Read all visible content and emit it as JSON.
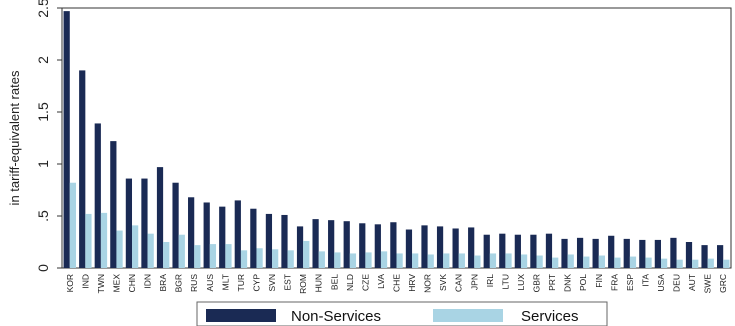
{
  "chart_data": {
    "type": "bar",
    "title": "",
    "xlabel": "",
    "ylabel": "in tariff-equivalent rates",
    "ylim": [
      0,
      2.5
    ],
    "yticks": [
      0,
      0.5,
      1,
      1.5,
      2,
      2.5
    ],
    "ytick_labels": [
      "0",
      ".5",
      "1",
      "1.5",
      "2",
      "2.5"
    ],
    "grid": false,
    "legend_position": "bottom",
    "categories": [
      "KOR",
      "IND",
      "TWN",
      "MEX",
      "CHN",
      "IDN",
      "BRA",
      "BGR",
      "RUS",
      "AUS",
      "MLT",
      "TUR",
      "CYP",
      "SVN",
      "EST",
      "ROM",
      "HUN",
      "BEL",
      "NLD",
      "CZE",
      "LVA",
      "CHE",
      "HRV",
      "NOR",
      "SVK",
      "CAN",
      "JPN",
      "IRL",
      "LTU",
      "LUX",
      "GBR",
      "PRT",
      "DNK",
      "POL",
      "FIN",
      "FRA",
      "ESP",
      "ITA",
      "USA",
      "DEU",
      "AUT",
      "SWE",
      "GRC"
    ],
    "series": [
      {
        "name": "Non-Services",
        "color": "#1a2a54",
        "values": [
          2.47,
          1.9,
          1.39,
          1.22,
          0.86,
          0.86,
          0.97,
          0.82,
          0.68,
          0.63,
          0.59,
          0.65,
          0.57,
          0.52,
          0.51,
          0.4,
          0.47,
          0.46,
          0.45,
          0.43,
          0.42,
          0.44,
          0.37,
          0.41,
          0.4,
          0.38,
          0.39,
          0.32,
          0.33,
          0.32,
          0.32,
          0.33,
          0.28,
          0.29,
          0.28,
          0.31,
          0.28,
          0.27,
          0.27,
          0.29,
          0.25,
          0.22,
          0.22
        ]
      },
      {
        "name": "Services",
        "color": "#a9d4e4",
        "values": [
          0.82,
          0.52,
          0.53,
          0.36,
          0.41,
          0.33,
          0.25,
          0.32,
          0.22,
          0.23,
          0.23,
          0.17,
          0.19,
          0.18,
          0.17,
          0.26,
          0.16,
          0.15,
          0.14,
          0.15,
          0.16,
          0.14,
          0.14,
          0.13,
          0.14,
          0.14,
          0.12,
          0.14,
          0.14,
          0.13,
          0.12,
          0.1,
          0.13,
          0.11,
          0.12,
          0.1,
          0.11,
          0.1,
          0.09,
          0.08,
          0.08,
          0.09,
          0.08
        ]
      }
    ]
  }
}
